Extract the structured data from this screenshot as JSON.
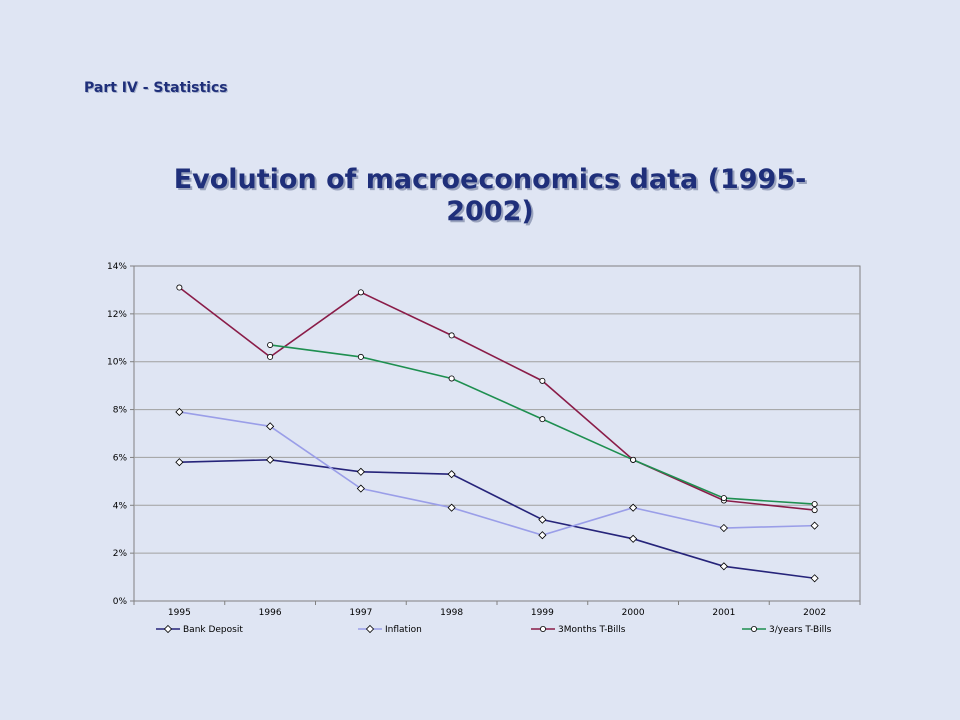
{
  "slide": {
    "section_label": "Part IV - Statistics",
    "title": "Evolution of macroeconomics data (1995-2002)"
  },
  "chart_data": {
    "type": "line",
    "title": "Evolution of macroeconomics data (1995-2002)",
    "x": [
      "1995",
      "1996",
      "1997",
      "1998",
      "1999",
      "2000",
      "2001",
      "2002"
    ],
    "y_ticks": [
      "0%",
      "2%",
      "4%",
      "6%",
      "8%",
      "10%",
      "12%",
      "14%"
    ],
    "ylim": [
      0,
      14
    ],
    "grid": true,
    "legend_position": "bottom",
    "series": [
      {
        "name": "Bank Deposit",
        "color": "#26247a",
        "marker": "diamond",
        "values": [
          5.8,
          5.9,
          5.4,
          5.3,
          3.4,
          2.6,
          1.45,
          0.95
        ]
      },
      {
        "name": "Inflation",
        "color": "#9a9ee8",
        "marker": "diamond",
        "values": [
          7.9,
          7.3,
          4.7,
          3.9,
          2.75,
          3.9,
          3.05,
          3.15
        ]
      },
      {
        "name": "3Months T-Bills",
        "color": "#8a1c48",
        "marker": "circle",
        "values": [
          13.1,
          10.2,
          12.9,
          11.1,
          9.2,
          5.9,
          4.2,
          3.8
        ]
      },
      {
        "name": "3/years T-Bills",
        "color": "#1e8f50",
        "marker": "circle",
        "values": [
          null,
          10.7,
          10.2,
          9.3,
          7.6,
          5.9,
          4.3,
          4.05
        ]
      }
    ]
  }
}
